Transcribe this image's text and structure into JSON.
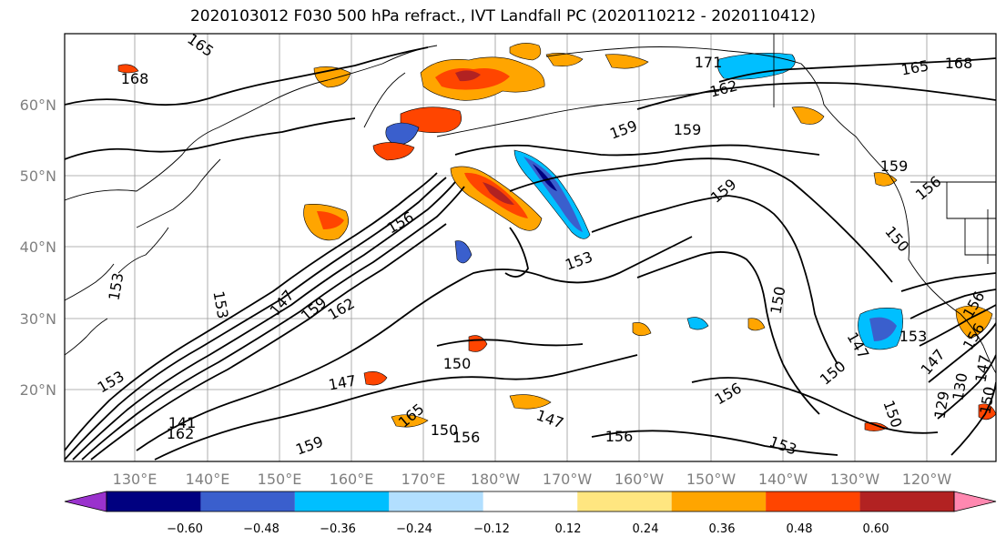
{
  "title": "2020103012 F030 500 hPa refract., IVT Landfall PC (2020110212 - 2020110412)",
  "latitude_labels": [
    "60°N",
    "50°N",
    "40°N",
    "30°N",
    "20°N"
  ],
  "longitude_labels": [
    "130°E",
    "140°E",
    "150°E",
    "160°E",
    "170°E",
    "180°W",
    "170°W",
    "160°W",
    "150°W",
    "140°W",
    "130°W",
    "120°W"
  ],
  "colorbar": {
    "colors": [
      "#9a32cd",
      "#000080",
      "#3a5fcd",
      "#00bfff",
      "#b2dfff",
      "#ffffff",
      "#ffe680",
      "#ffa500",
      "#ff4500",
      "#b22222",
      "#ff88b0"
    ],
    "tick_labels": [
      "−0.60",
      "−0.48",
      "−0.36",
      "−0.24",
      "−0.12",
      "0.12",
      "0.24",
      "0.36",
      "0.48",
      "0.60"
    ]
  },
  "contour_labels": [
    "165",
    "168",
    "171",
    "162",
    "165",
    "168",
    "159",
    "159",
    "159",
    "159",
    "156",
    "156",
    "153",
    "150",
    "150",
    "153",
    "150",
    "147",
    "147",
    "147",
    "159",
    "162",
    "153",
    "153",
    "141",
    "162",
    "165",
    "150",
    "156",
    "159",
    "147",
    "147",
    "156",
    "156",
    "150",
    "153",
    "150",
    "153",
    "156",
    "156",
    "147",
    "130",
    "129",
    "150"
  ]
}
